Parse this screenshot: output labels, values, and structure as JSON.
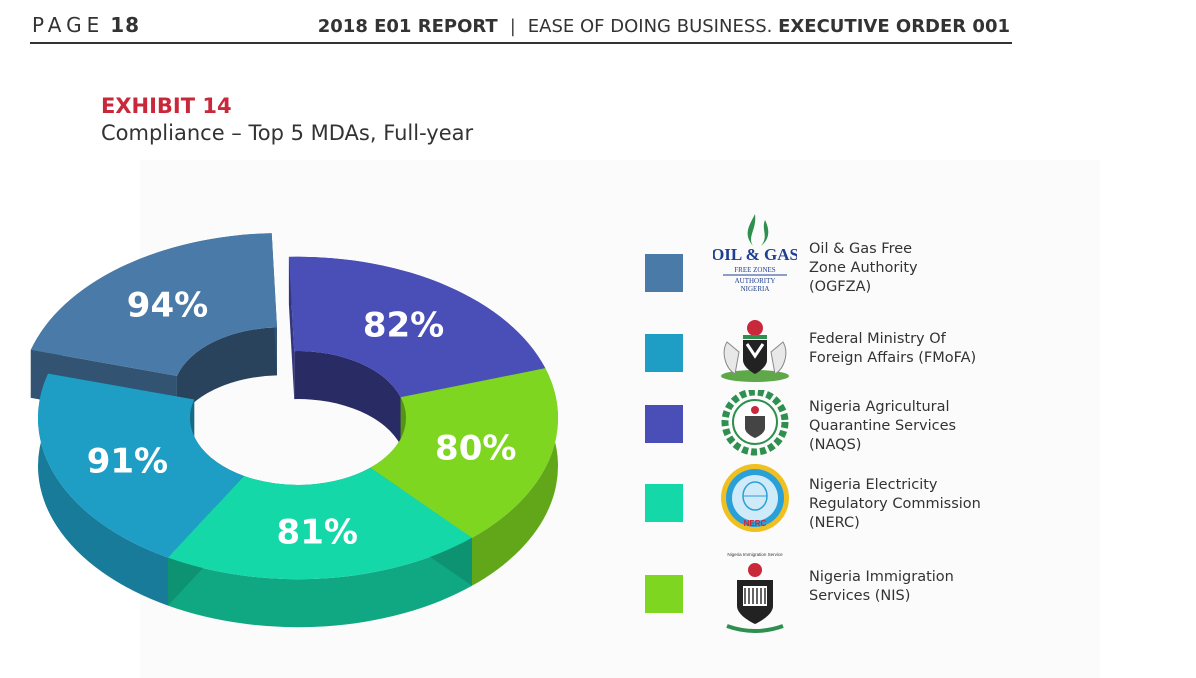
{
  "header": {
    "page_word": "PAGE",
    "page_number": "18",
    "report_title": "2018 E01 REPORT",
    "separator": "|",
    "report_subject": "EASE OF DOING BUSINESS.",
    "report_order": "EXECUTIVE ORDER 001"
  },
  "exhibit": {
    "label": "EXHIBIT 14",
    "title": "Compliance – Top 5 MDAs, Full-year"
  },
  "logos": {
    "ogfza_text": "OIL & GAS",
    "ogfza_sub1": "FREE ZONES",
    "ogfza_sub2": "AUTHORITY",
    "ogfza_sub3": "NIGERIA",
    "nerc_text": "NERC",
    "nis_caption": "Nigeria Immigration Service"
  },
  "chart_data": {
    "type": "pie",
    "variant": "donut-3d",
    "title": "",
    "categories": [
      "Oil & Gas Free Zone Authority (OGFZA)",
      "Federal Ministry Of Foreign Affairs (FMoFA)",
      "Nigeria Agricultural Quarantine Services (NAQS)",
      "Nigeria Electricity Regulatory Commission (NERC)",
      "Nigeria Immigration Services (NIS)"
    ],
    "values": [
      94,
      91,
      82,
      81,
      80
    ],
    "data_labels": [
      "94%",
      "91%",
      "82%",
      "81%",
      "80%"
    ],
    "colors": [
      "#4a7aa8",
      "#1e9ec4",
      "#4a4fb8",
      "#14d8a8",
      "#7ed621"
    ],
    "legend_position": "right"
  },
  "legend": {
    "items": [
      {
        "label": "Oil & Gas Free\nZone Authority\n(OGFZA)",
        "color": "#4a7aa8",
        "logo": "ogfza-logo-icon"
      },
      {
        "label": "Federal Ministry Of\nForeign Affairs (FMoFA)",
        "color": "#1e9ec4",
        "logo": "coat-of-arms-icon"
      },
      {
        "label": "Nigeria Agricultural\nQuarantine Services\n(NAQS)",
        "color": "#4a4fb8",
        "logo": "naqs-emblem-icon"
      },
      {
        "label": "Nigeria Electricity\nRegulatory Commission\n(NERC)",
        "color": "#14d8a8",
        "logo": "nerc-seal-icon"
      },
      {
        "label": "Nigeria Immigration\nServices (NIS)",
        "color": "#7ed621",
        "logo": "nis-crest-icon"
      }
    ]
  }
}
